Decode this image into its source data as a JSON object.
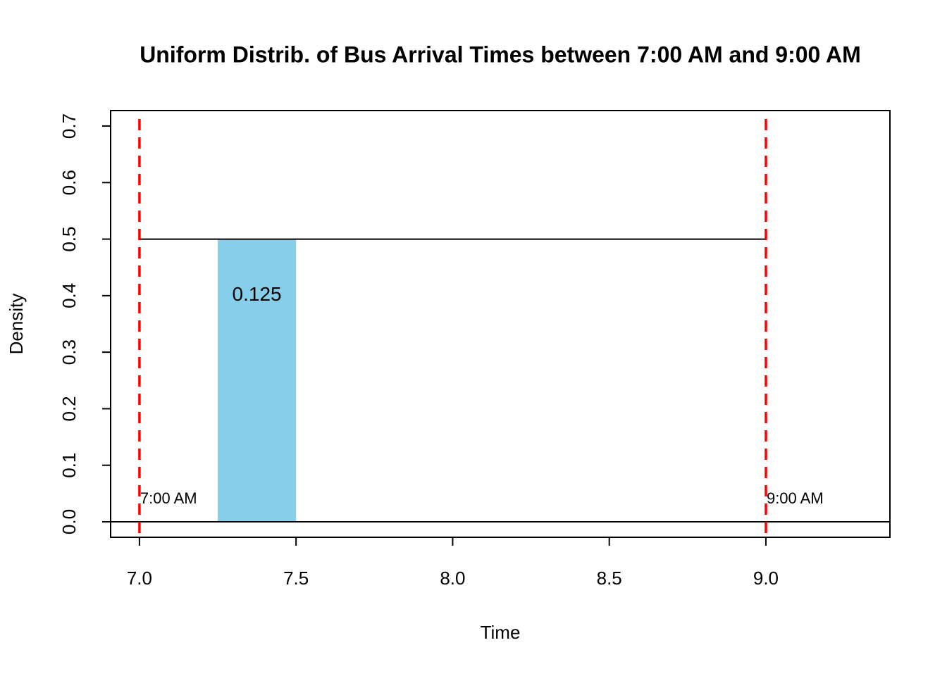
{
  "chart_data": {
    "type": "line",
    "title": "Uniform Distrib. of Bus Arrival Times between 7:00 AM and 9:00 AM",
    "x_label": "Time",
    "y_label": "Density",
    "x": [
      7,
      9
    ],
    "values": [
      0.5,
      0.5
    ],
    "color": "#000000",
    "region": {
      "from": 7.25,
      "to": 7.5,
      "height": 0.5,
      "area": 0.125,
      "color": "#87ceeb"
    },
    "vlines": [
      {
        "x": 7,
        "label": "7:00 AM"
      },
      {
        "x": 9,
        "label": "9:00 AM"
      }
    ],
    "vline_color": "#ff0000",
    "hline": 0,
    "xlim": [
      6.908,
      9.396
    ],
    "ylim": [
      -0.0274,
      0.7274
    ],
    "xticks": [
      {
        "value": 7,
        "label": "7.0"
      },
      {
        "value": 7.5,
        "label": "7.5"
      },
      {
        "value": 8,
        "label": "8.0"
      },
      {
        "value": 8.5,
        "label": "8.5"
      },
      {
        "value": 9,
        "label": "9.0"
      }
    ],
    "yticks": [
      {
        "value": 0,
        "label": "0.0"
      },
      0.1,
      0.2,
      0.3,
      0.4,
      0.5,
      0.6,
      0.7
    ]
  }
}
